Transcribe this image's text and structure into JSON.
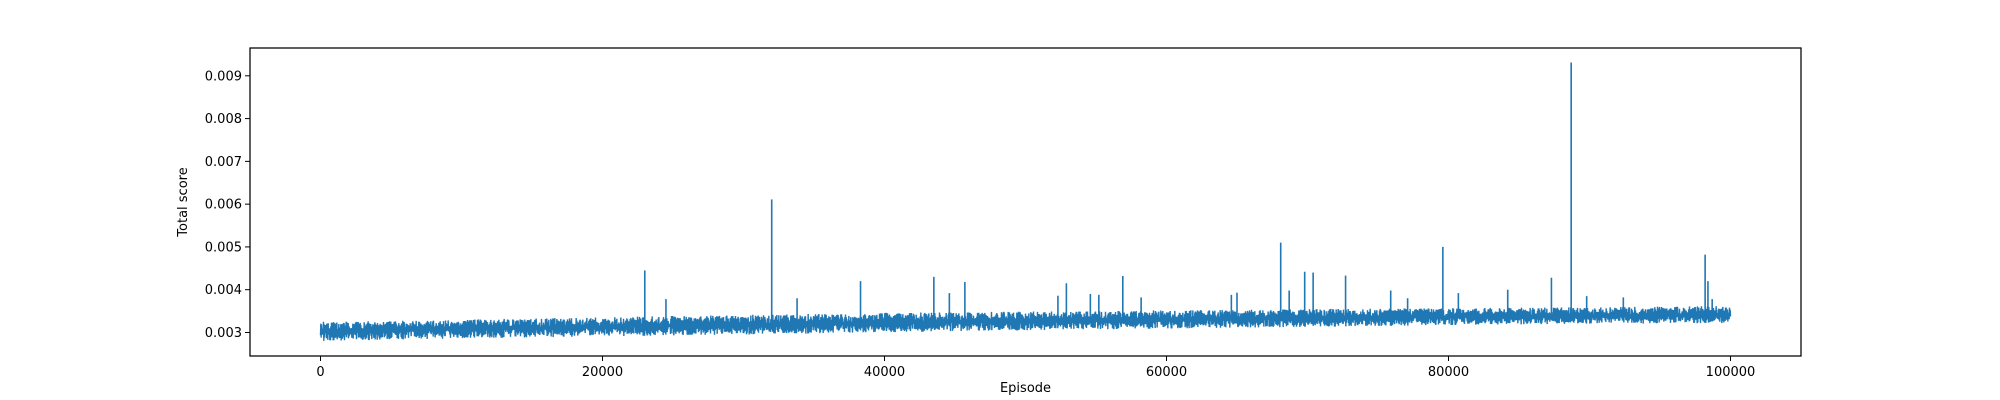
{
  "chart_data": {
    "type": "line",
    "title": "",
    "xlabel": "Episode",
    "ylabel": "Total score",
    "xlim": [
      -5000,
      105000
    ],
    "ylim": [
      0.00245,
      0.00965
    ],
    "xticks": [
      0,
      20000,
      40000,
      60000,
      80000,
      100000
    ],
    "xtick_labels": [
      "0",
      "20000",
      "40000",
      "60000",
      "80000",
      "100000"
    ],
    "yticks": [
      0.003,
      0.004,
      0.005,
      0.006,
      0.007,
      0.008,
      0.009
    ],
    "ytick_labels": [
      "0.003",
      "0.004",
      "0.005",
      "0.006",
      "0.007",
      "0.008",
      "0.009"
    ],
    "grid": false,
    "legend": "none",
    "series": [
      {
        "color": "#1f77b4",
        "band": {
          "x": [
            0,
            10000,
            20000,
            30000,
            40000,
            50000,
            60000,
            70000,
            80000,
            90000,
            100000
          ],
          "mean": [
            0.00302,
            0.00307,
            0.00312,
            0.00316,
            0.0032,
            0.00323,
            0.00326,
            0.00329,
            0.00332,
            0.00334,
            0.00336
          ],
          "lower": [
            0.0028,
            0.00286,
            0.00291,
            0.00295,
            0.003,
            0.00305,
            0.00309,
            0.00313,
            0.00317,
            0.0032,
            0.00322
          ],
          "upper": [
            0.00325,
            0.0033,
            0.00336,
            0.00341,
            0.00346,
            0.00349,
            0.00352,
            0.00355,
            0.00357,
            0.00359,
            0.00362
          ]
        },
        "spikes": [
          {
            "x": 23000,
            "y": 0.00445
          },
          {
            "x": 24500,
            "y": 0.00378
          },
          {
            "x": 32000,
            "y": 0.00611
          },
          {
            "x": 33800,
            "y": 0.0038
          },
          {
            "x": 38300,
            "y": 0.0042
          },
          {
            "x": 43500,
            "y": 0.0043
          },
          {
            "x": 44600,
            "y": 0.00392
          },
          {
            "x": 45700,
            "y": 0.00418
          },
          {
            "x": 52300,
            "y": 0.00386
          },
          {
            "x": 52900,
            "y": 0.00415
          },
          {
            "x": 54600,
            "y": 0.0039
          },
          {
            "x": 55200,
            "y": 0.00388
          },
          {
            "x": 56900,
            "y": 0.00432
          },
          {
            "x": 58200,
            "y": 0.00382
          },
          {
            "x": 64600,
            "y": 0.00388
          },
          {
            "x": 65000,
            "y": 0.00393
          },
          {
            "x": 68100,
            "y": 0.0051
          },
          {
            "x": 68700,
            "y": 0.00398
          },
          {
            "x": 69800,
            "y": 0.00442
          },
          {
            "x": 70400,
            "y": 0.0044
          },
          {
            "x": 72700,
            "y": 0.00433
          },
          {
            "x": 75900,
            "y": 0.00398
          },
          {
            "x": 77100,
            "y": 0.0038
          },
          {
            "x": 79600,
            "y": 0.005
          },
          {
            "x": 80700,
            "y": 0.00392
          },
          {
            "x": 84200,
            "y": 0.004
          },
          {
            "x": 87300,
            "y": 0.00428
          },
          {
            "x": 88700,
            "y": 0.00931
          },
          {
            "x": 89800,
            "y": 0.00385
          },
          {
            "x": 92400,
            "y": 0.00382
          },
          {
            "x": 98200,
            "y": 0.00482
          },
          {
            "x": 98400,
            "y": 0.0042
          },
          {
            "x": 98700,
            "y": 0.00378
          }
        ]
      }
    ]
  }
}
